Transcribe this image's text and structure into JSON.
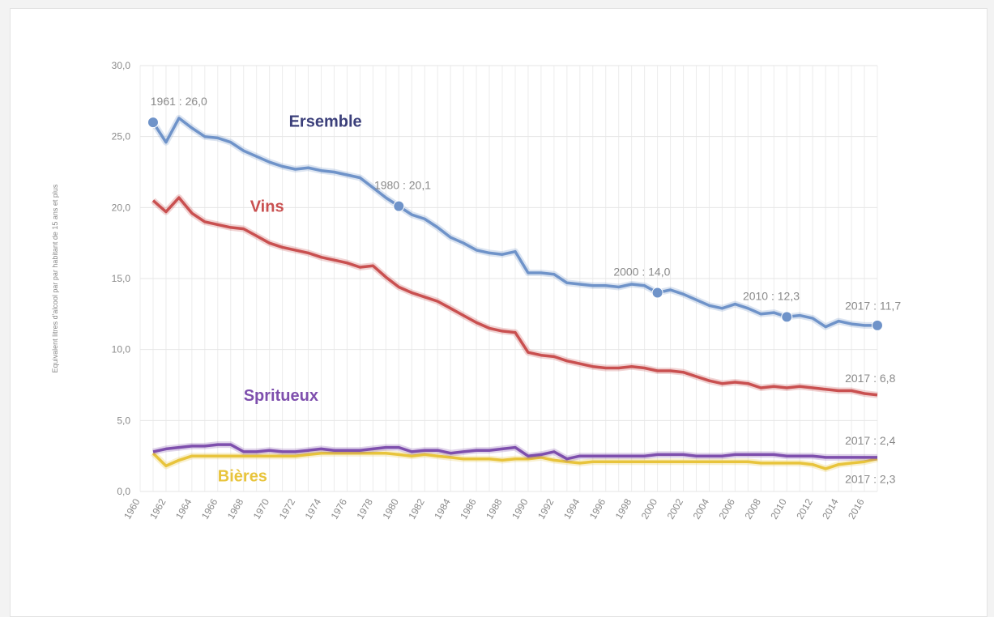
{
  "chart_data": {
    "type": "line",
    "ylabel": "Equivalent litres d'alcool par par habitant de 15 ans et plus",
    "ylim": [
      0,
      30
    ],
    "yticks": [
      "0,0",
      "5,0",
      "10,0",
      "15,0",
      "20,0",
      "25,0",
      "30,0"
    ],
    "xlim": [
      1960,
      2017
    ],
    "xticks": [
      "1960",
      "1962",
      "1964",
      "1966",
      "1968",
      "1970",
      "1972",
      "1974",
      "1976",
      "1978",
      "1980",
      "1982",
      "1984",
      "1986",
      "1988",
      "1990",
      "1992",
      "1994",
      "1996",
      "1998",
      "2000",
      "2002",
      "2004",
      "2006",
      "2008",
      "2010",
      "2012",
      "2014",
      "2016"
    ],
    "grid": true,
    "legend": "none",
    "x": [
      1961,
      1962,
      1963,
      1964,
      1965,
      1966,
      1967,
      1968,
      1969,
      1970,
      1971,
      1972,
      1973,
      1974,
      1975,
      1976,
      1977,
      1978,
      1979,
      1980,
      1981,
      1982,
      1983,
      1984,
      1985,
      1986,
      1987,
      1988,
      1989,
      1990,
      1991,
      1992,
      1993,
      1994,
      1995,
      1996,
      1997,
      1998,
      1999,
      2000,
      2001,
      2002,
      2003,
      2004,
      2005,
      2006,
      2007,
      2008,
      2009,
      2010,
      2011,
      2012,
      2013,
      2014,
      2015,
      2016,
      2017
    ],
    "series": [
      {
        "name": "Ensemble",
        "color": "#6f93c9",
        "values": [
          26.0,
          24.6,
          26.3,
          25.6,
          25.0,
          24.9,
          24.6,
          24.0,
          23.6,
          23.2,
          22.9,
          22.7,
          22.8,
          22.6,
          22.5,
          22.3,
          22.1,
          21.4,
          20.7,
          20.1,
          19.5,
          19.2,
          18.6,
          17.9,
          17.5,
          17.0,
          16.8,
          16.7,
          16.9,
          15.4,
          15.4,
          15.3,
          14.7,
          14.6,
          14.5,
          14.5,
          14.4,
          14.6,
          14.5,
          14.0,
          14.2,
          13.9,
          13.5,
          13.1,
          12.9,
          13.2,
          12.9,
          12.5,
          12.6,
          12.3,
          12.4,
          12.2,
          11.6,
          12.0,
          11.8,
          11.7,
          11.7
        ]
      },
      {
        "name": "Vins",
        "color": "#c95050",
        "values": [
          20.5,
          19.7,
          20.7,
          19.6,
          19.0,
          18.8,
          18.6,
          18.5,
          18.0,
          17.5,
          17.2,
          17.0,
          16.8,
          16.5,
          16.3,
          16.1,
          15.8,
          15.9,
          15.1,
          14.4,
          14.0,
          13.7,
          13.4,
          12.9,
          12.4,
          11.9,
          11.5,
          11.3,
          11.2,
          9.8,
          9.6,
          9.5,
          9.2,
          9.0,
          8.8,
          8.7,
          8.7,
          8.8,
          8.7,
          8.5,
          8.5,
          8.4,
          8.1,
          7.8,
          7.6,
          7.7,
          7.6,
          7.3,
          7.4,
          7.3,
          7.4,
          7.3,
          7.2,
          7.1,
          7.1,
          6.9,
          6.8
        ]
      },
      {
        "name": "Spritueux",
        "color": "#7e4fad",
        "values": [
          2.8,
          3.0,
          3.1,
          3.2,
          3.2,
          3.3,
          3.3,
          2.8,
          2.8,
          2.9,
          2.8,
          2.8,
          2.9,
          3.0,
          2.9,
          2.9,
          2.9,
          3.0,
          3.1,
          3.1,
          2.8,
          2.9,
          2.9,
          2.7,
          2.8,
          2.9,
          2.9,
          3.0,
          3.1,
          2.5,
          2.6,
          2.8,
          2.3,
          2.5,
          2.5,
          2.5,
          2.5,
          2.5,
          2.5,
          2.6,
          2.6,
          2.6,
          2.5,
          2.5,
          2.5,
          2.6,
          2.6,
          2.6,
          2.6,
          2.5,
          2.5,
          2.5,
          2.4,
          2.4,
          2.4,
          2.4,
          2.4
        ]
      },
      {
        "name": "Bières",
        "color": "#e8c43c",
        "values": [
          2.7,
          1.8,
          2.2,
          2.5,
          2.5,
          2.5,
          2.5,
          2.5,
          2.5,
          2.5,
          2.5,
          2.5,
          2.6,
          2.7,
          2.7,
          2.7,
          2.7,
          2.7,
          2.7,
          2.6,
          2.5,
          2.6,
          2.5,
          2.4,
          2.3,
          2.3,
          2.3,
          2.2,
          2.3,
          2.3,
          2.4,
          2.2,
          2.1,
          2.0,
          2.1,
          2.1,
          2.1,
          2.1,
          2.1,
          2.1,
          2.1,
          2.1,
          2.1,
          2.1,
          2.1,
          2.1,
          2.1,
          2.0,
          2.0,
          2.0,
          2.0,
          1.9,
          1.6,
          1.9,
          2.0,
          2.1,
          2.3
        ]
      }
    ],
    "series_labels": [
      {
        "text": "Ersemble",
        "color": "#3b3f7a",
        "x": 1971.5,
        "y": 25.7
      },
      {
        "text": "Vins",
        "color": "#c95050",
        "x": 1968.5,
        "y": 19.7
      },
      {
        "text": "Spritueux",
        "color": "#7e4fad",
        "x": 1968,
        "y": 6.4
      },
      {
        "text": "Bières",
        "color": "#e8c43c",
        "x": 1966,
        "y": 0.7
      }
    ],
    "annotations": [
      {
        "text": "1961 : 26,0",
        "x": 1960.8,
        "y": 27.2,
        "marker": {
          "series": 0,
          "year": 1961
        }
      },
      {
        "text": "1980 : 20,1",
        "x": 1978.1,
        "y": 21.3,
        "marker": {
          "series": 0,
          "year": 1980
        }
      },
      {
        "text": "2000 : 14,0",
        "x": 1996.6,
        "y": 15.2,
        "marker": {
          "series": 0,
          "year": 2000
        }
      },
      {
        "text": "2010 : 12,3",
        "x": 2006.6,
        "y": 13.5,
        "marker": {
          "series": 0,
          "year": 2010
        }
      },
      {
        "text": "2017 : 11,7",
        "x": 2014.5,
        "y": 12.8,
        "marker": {
          "series": 0,
          "year": 2017
        }
      },
      {
        "text": "2017 : 6,8",
        "x": 2014.5,
        "y": 7.7,
        "marker": null
      },
      {
        "text": "2017 : 2,4",
        "x": 2014.5,
        "y": 3.3,
        "marker": null
      },
      {
        "text": "2017 : 2,3",
        "x": 2014.5,
        "y": 0.6,
        "marker": null
      }
    ]
  }
}
